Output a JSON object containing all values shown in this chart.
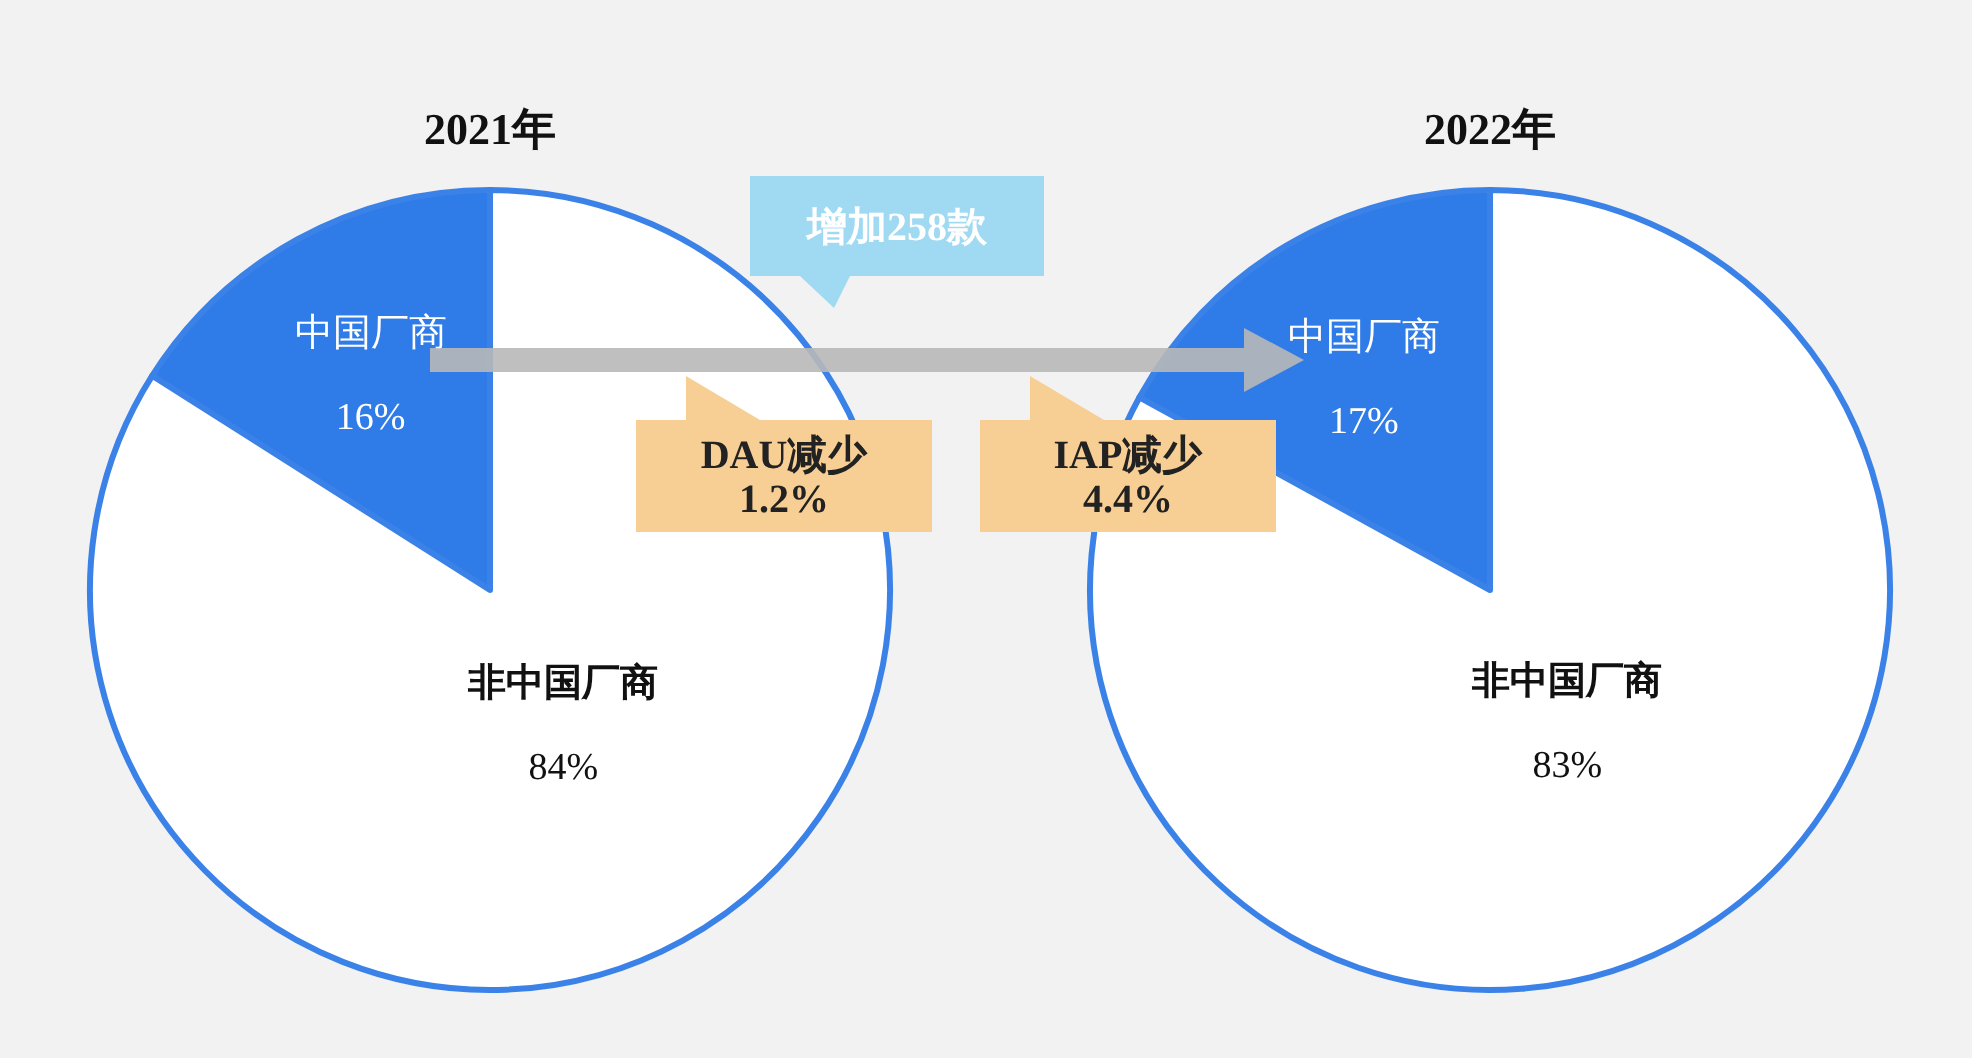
{
  "chart_data": [
    {
      "type": "pie",
      "title": "2021年",
      "categories": [
        "中国厂商",
        "非中国厂商"
      ],
      "values": [
        16,
        84
      ],
      "colors": [
        "#2f7be8",
        "#ffffff"
      ],
      "value_labels": [
        "16%",
        "84%"
      ]
    },
    {
      "type": "pie",
      "title": "2022年",
      "categories": [
        "中国厂商",
        "非中国厂商"
      ],
      "values": [
        17,
        83
      ],
      "colors": [
        "#2f7be8",
        "#ffffff"
      ],
      "value_labels": [
        "17%",
        "83%"
      ]
    },
    {
      "type": "other",
      "annotations": [
        "增加258款",
        "DAU减少 1.2%",
        "IAP减少 4.4%"
      ]
    }
  ]
}
